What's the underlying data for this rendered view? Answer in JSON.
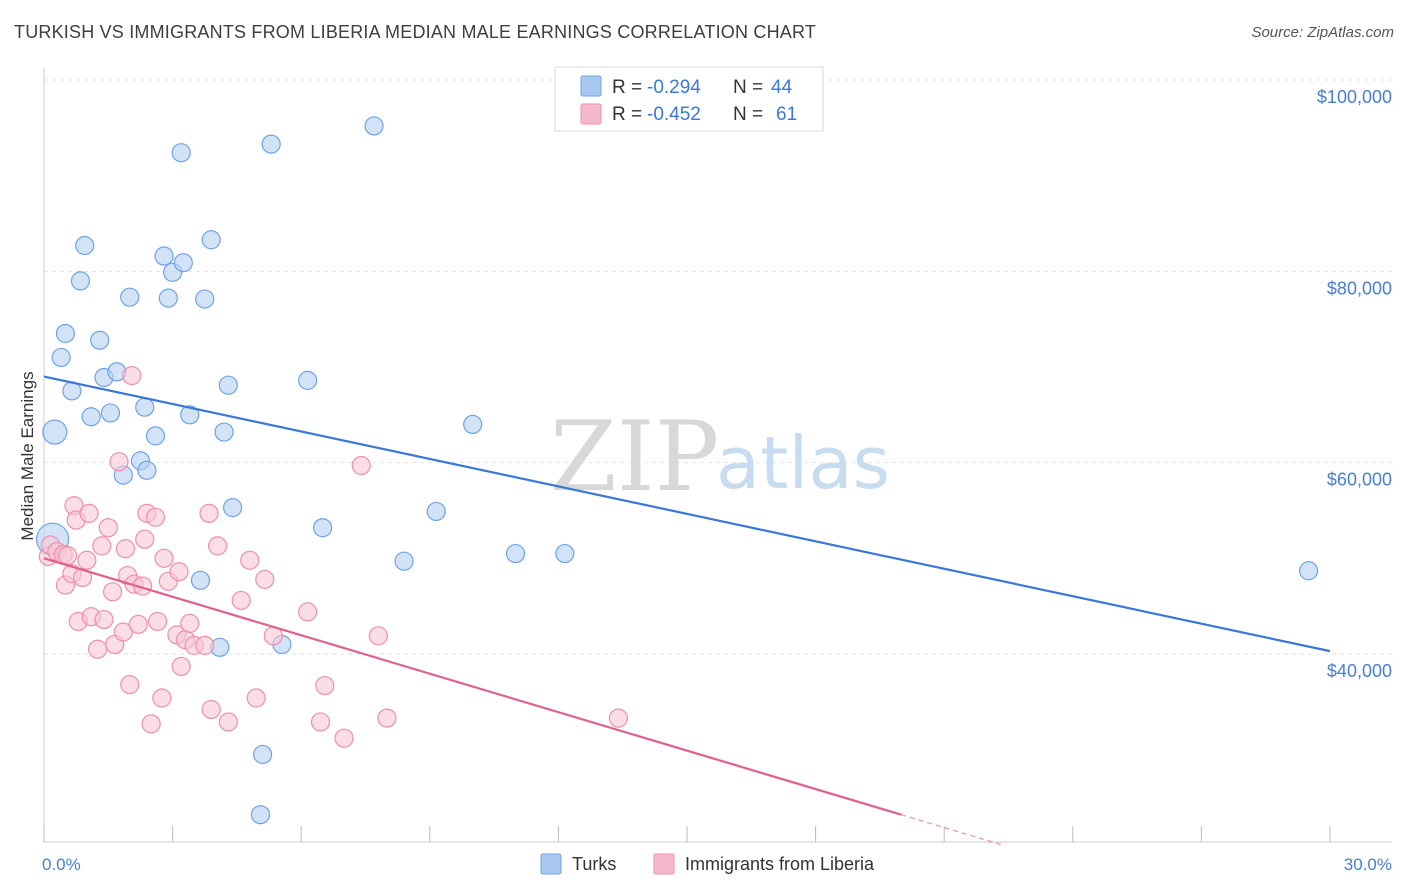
{
  "title": "TURKISH VS IMMIGRANTS FROM LIBERIA MEDIAN MALE EARNINGS CORRELATION CHART",
  "source": "Source: ZipAtlas.com",
  "watermark": {
    "zip": "ZIP",
    "atlas": "atlas"
  },
  "legend": {
    "rows": [
      {
        "r_label": "R = ",
        "r_value": "-0.294",
        "n_label": "N = ",
        "n_value": "44",
        "color": "#a8c8f0"
      },
      {
        "r_label": "R = ",
        "r_value": "-0.452",
        "n_label": "N = ",
        "n_value": "61",
        "color": "#f6b8cb"
      }
    ]
  },
  "bottom_legend": [
    {
      "label": "Turks",
      "color": "#a8c8f0"
    },
    {
      "label": "Immigrants from Liberia",
      "color": "#f6b8cb"
    }
  ],
  "chart_data": {
    "type": "scatter",
    "title": "TURKISH VS IMMIGRANTS FROM LIBERIA MEDIAN MALE EARNINGS CORRELATION CHART",
    "xlabel": "",
    "ylabel": "Median Male Earnings",
    "xlim": [
      0,
      30
    ],
    "ylim": [
      21000,
      103000
    ],
    "x_tick_labels": [
      {
        "value": 0,
        "label": "0.0%"
      },
      {
        "value": 30,
        "label": "30.0%"
      }
    ],
    "y_tick_labels": [
      {
        "value": 40000,
        "label": "$40,000"
      },
      {
        "value": 60000,
        "label": "$60,000"
      },
      {
        "value": 80000,
        "label": "$80,000"
      },
      {
        "value": 100000,
        "label": "$100,000"
      }
    ],
    "grid": true,
    "series": [
      {
        "name": "Turks",
        "color": "#6fa3e8",
        "fill": "#b4d0f3",
        "trend": {
          "x": [
            0,
            30
          ],
          "y": [
            69000,
            40300
          ],
          "color": "#3a78d8"
        },
        "points": [
          [
            0.2,
            52000
          ],
          [
            0.25,
            63200
          ],
          [
            0.4,
            71000
          ],
          [
            0.5,
            73500
          ],
          [
            0.65,
            67500
          ],
          [
            0.85,
            79000
          ],
          [
            0.95,
            82700
          ],
          [
            1.1,
            64800
          ],
          [
            1.3,
            72800
          ],
          [
            1.4,
            68900
          ],
          [
            1.55,
            65200
          ],
          [
            1.7,
            69500
          ],
          [
            1.85,
            58700
          ],
          [
            2.0,
            77300
          ],
          [
            2.25,
            60200
          ],
          [
            2.35,
            65800
          ],
          [
            2.4,
            59200
          ],
          [
            2.6,
            62800
          ],
          [
            2.8,
            81600
          ],
          [
            2.9,
            77200
          ],
          [
            3.0,
            79900
          ],
          [
            3.2,
            92400
          ],
          [
            3.25,
            80900
          ],
          [
            3.4,
            65000
          ],
          [
            3.65,
            47700
          ],
          [
            3.75,
            77100
          ],
          [
            3.9,
            83300
          ],
          [
            4.1,
            40700
          ],
          [
            4.2,
            63200
          ],
          [
            4.3,
            68100
          ],
          [
            4.4,
            55300
          ],
          [
            5.05,
            23200
          ],
          [
            5.1,
            29500
          ],
          [
            5.3,
            93300
          ],
          [
            5.55,
            41000
          ],
          [
            6.15,
            68600
          ],
          [
            6.5,
            53200
          ],
          [
            7.7,
            95200
          ],
          [
            8.4,
            49700
          ],
          [
            9.15,
            54900
          ],
          [
            10.0,
            64000
          ],
          [
            11.0,
            50500
          ],
          [
            12.15,
            50500
          ],
          [
            29.5,
            48700
          ]
        ]
      },
      {
        "name": "Immigrants from Liberia",
        "color": "#ee8fae",
        "fill": "#f8c6d5",
        "trend": {
          "x": [
            0,
            20
          ],
          "y": [
            50000,
            23200
          ],
          "color": "#e0608e",
          "dashed_to_x": 22.4
        },
        "points": [
          [
            0.1,
            50200
          ],
          [
            0.15,
            51400
          ],
          [
            0.3,
            50700
          ],
          [
            0.45,
            50400
          ],
          [
            0.5,
            47200
          ],
          [
            0.55,
            50300
          ],
          [
            0.65,
            48400
          ],
          [
            0.7,
            55500
          ],
          [
            0.75,
            54000
          ],
          [
            0.8,
            43400
          ],
          [
            0.9,
            48000
          ],
          [
            1.0,
            49800
          ],
          [
            1.05,
            54700
          ],
          [
            1.1,
            43900
          ],
          [
            1.25,
            40500
          ],
          [
            1.35,
            51300
          ],
          [
            1.4,
            43600
          ],
          [
            1.5,
            53200
          ],
          [
            1.6,
            46500
          ],
          [
            1.65,
            41000
          ],
          [
            1.75,
            60100
          ],
          [
            1.85,
            42300
          ],
          [
            1.9,
            51000
          ],
          [
            1.95,
            48200
          ],
          [
            2.0,
            36800
          ],
          [
            2.1,
            47300
          ],
          [
            2.2,
            43100
          ],
          [
            2.3,
            47100
          ],
          [
            2.35,
            52000
          ],
          [
            2.4,
            54700
          ],
          [
            2.5,
            32700
          ],
          [
            2.6,
            54300
          ],
          [
            2.65,
            43400
          ],
          [
            2.75,
            35400
          ],
          [
            2.8,
            50000
          ],
          [
            2.9,
            47600
          ],
          [
            3.1,
            42000
          ],
          [
            3.15,
            48600
          ],
          [
            3.2,
            38700
          ],
          [
            3.3,
            41500
          ],
          [
            3.4,
            43200
          ],
          [
            3.5,
            40900
          ],
          [
            3.75,
            40900
          ],
          [
            3.85,
            54700
          ],
          [
            3.9,
            34200
          ],
          [
            4.05,
            51300
          ],
          [
            4.3,
            32900
          ],
          [
            4.6,
            45600
          ],
          [
            4.8,
            49800
          ],
          [
            4.95,
            35400
          ],
          [
            5.15,
            47800
          ],
          [
            5.35,
            41900
          ],
          [
            6.15,
            44400
          ],
          [
            6.45,
            32900
          ],
          [
            6.55,
            36700
          ],
          [
            7.0,
            31200
          ],
          [
            7.4,
            59700
          ],
          [
            7.8,
            41900
          ],
          [
            8.0,
            33300
          ],
          [
            13.4,
            33300
          ],
          [
            2.05,
            69100
          ]
        ]
      }
    ]
  }
}
